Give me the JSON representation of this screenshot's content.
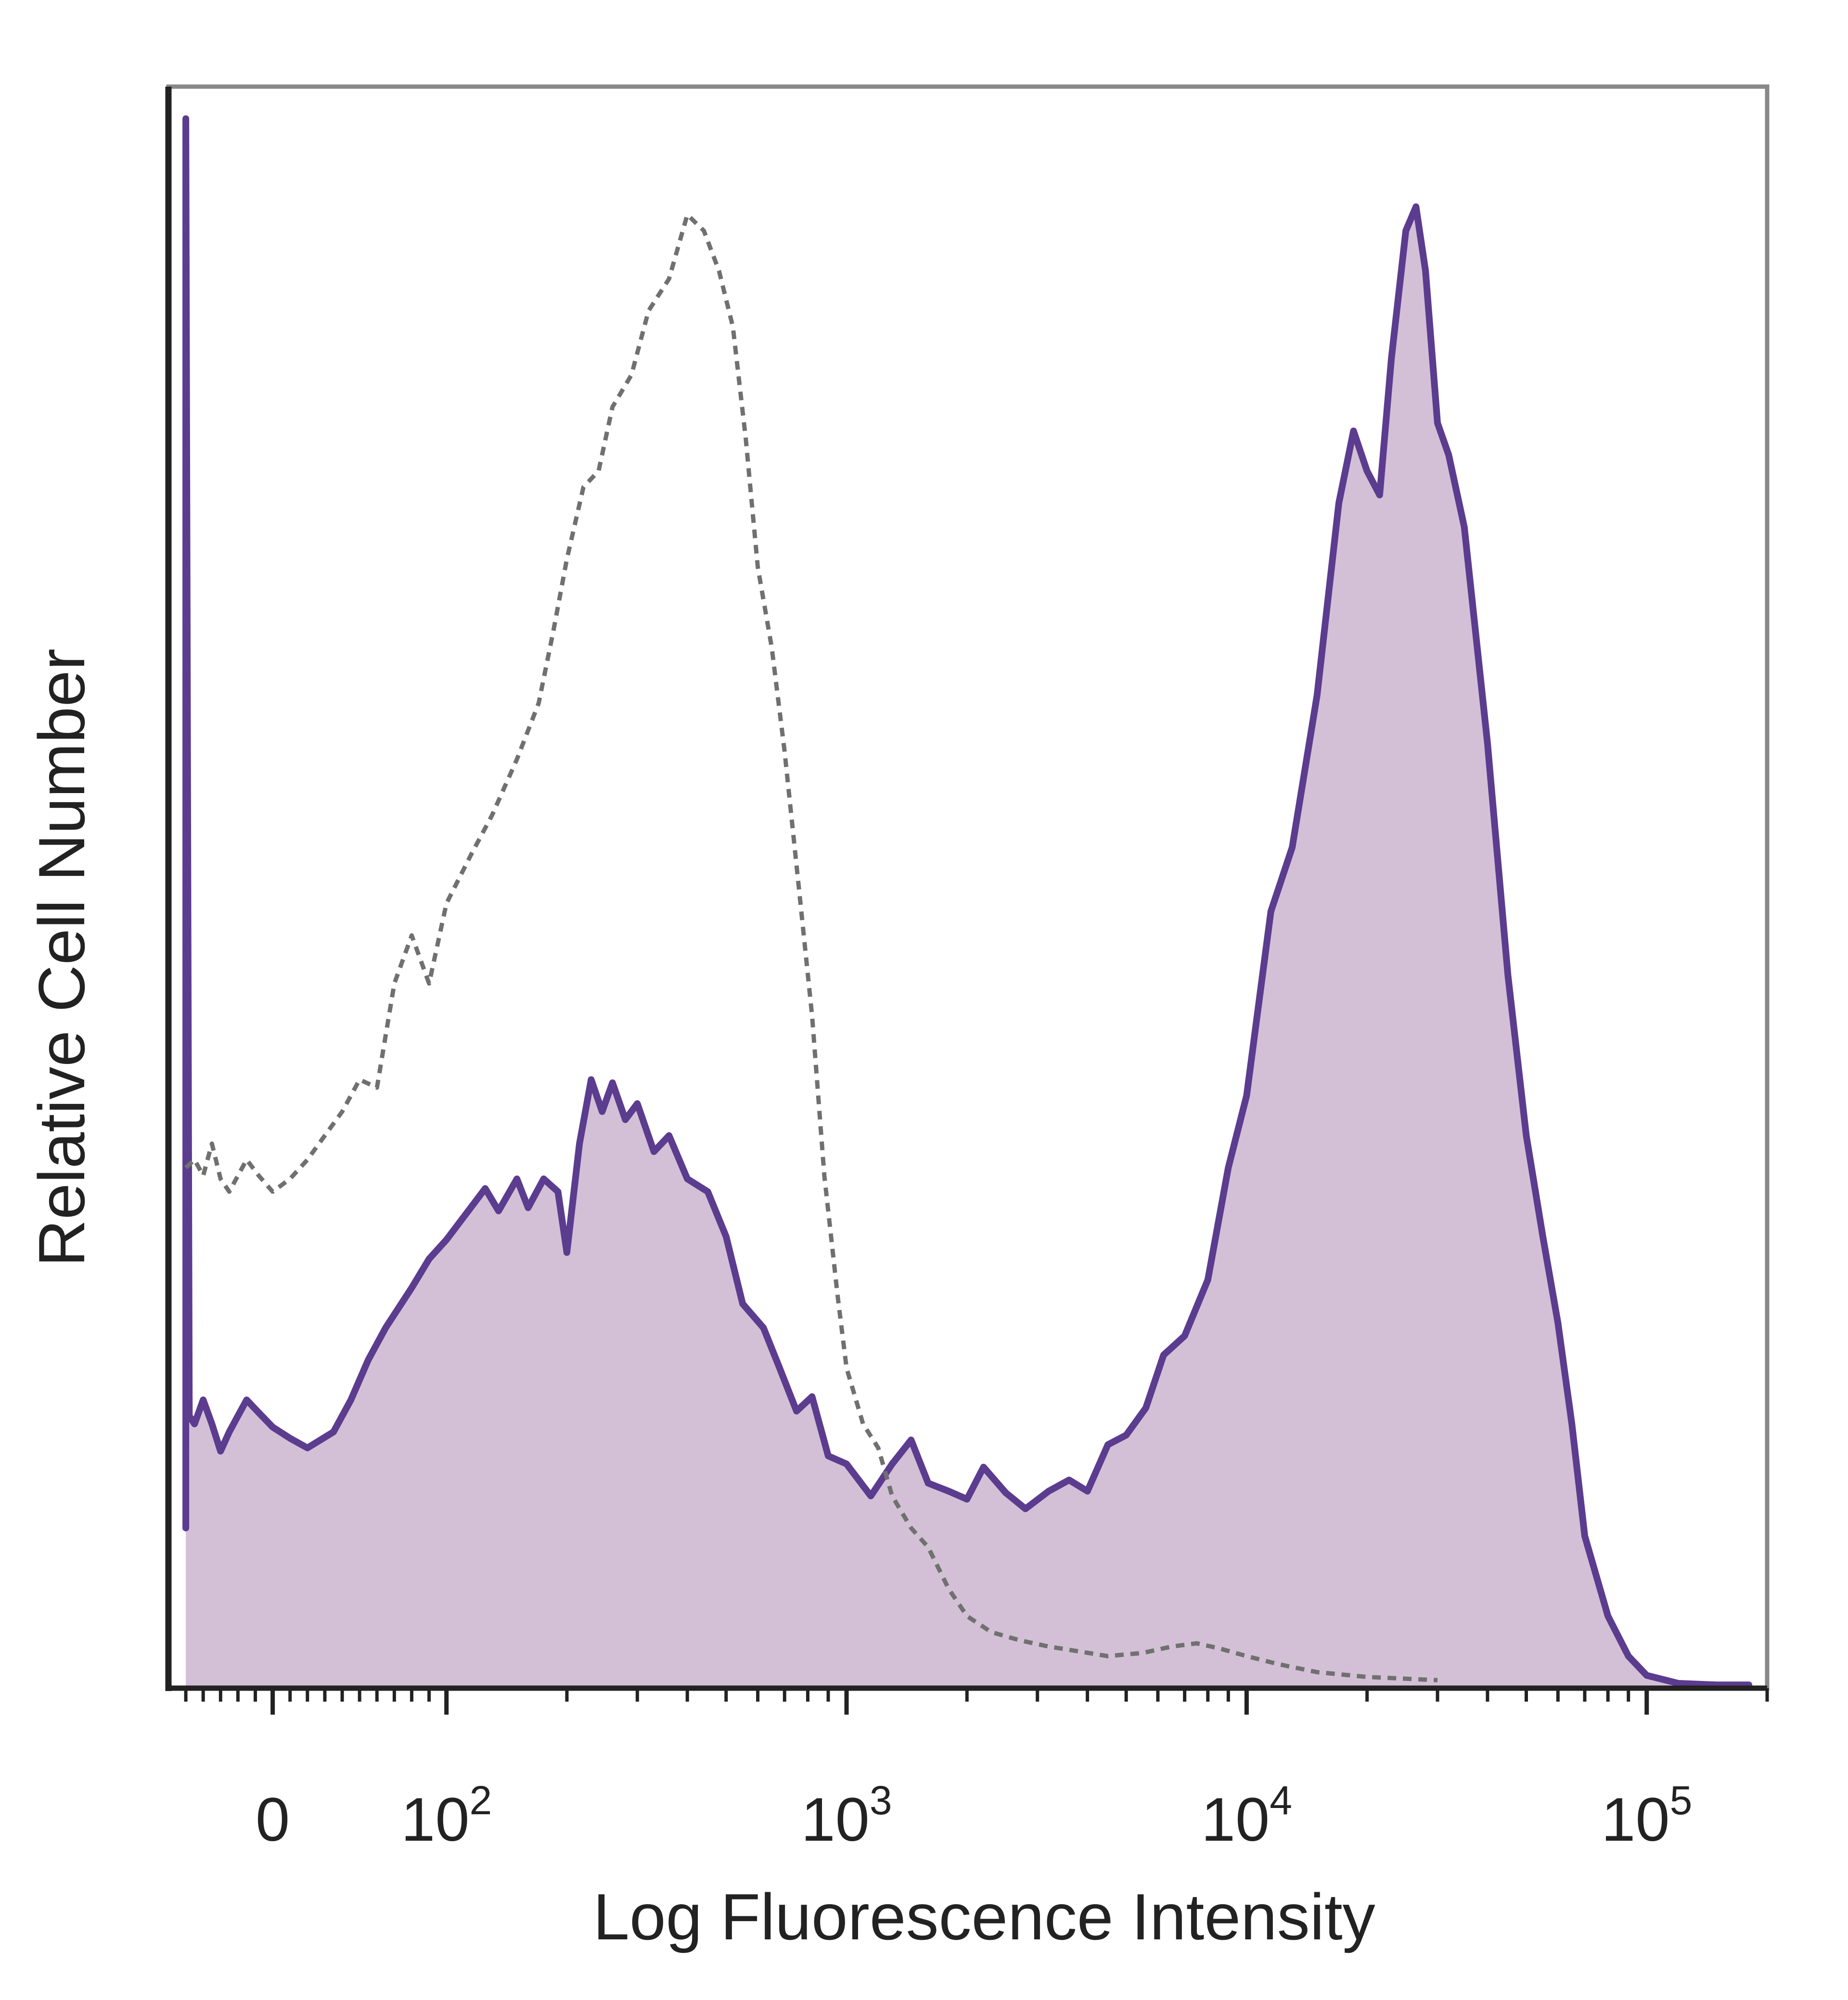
{
  "chart_data": {
    "type": "area",
    "title": "",
    "xlabel": "Log Fluorescence Intensity",
    "ylabel": "Relative Cell Number",
    "x_scale": "biexponential",
    "xlim": [
      -60,
      200000
    ],
    "ylim": [
      0,
      1
    ],
    "grid": false,
    "legend": "none",
    "x_ticks": [
      {
        "value": 0,
        "base": "0",
        "exp": ""
      },
      {
        "value": 100,
        "base": "10",
        "exp": "2"
      },
      {
        "value": 1000,
        "base": "10",
        "exp": "3"
      },
      {
        "value": 10000,
        "base": "10",
        "exp": "4"
      },
      {
        "value": 100000,
        "base": "10",
        "exp": "5"
      }
    ],
    "colors": {
      "filled_line": "#5b3c8f",
      "filled_area": "#d3c0d6",
      "control_line": "#707070",
      "frame": "#888888"
    },
    "series": [
      {
        "style": "filled-solid",
        "points": [
          [
            -50,
            0.1
          ],
          [
            -50,
            0.98
          ],
          [
            -48,
            0.17
          ],
          [
            -45,
            0.165
          ],
          [
            -40,
            0.18
          ],
          [
            -35,
            0.165
          ],
          [
            -30,
            0.148
          ],
          [
            -25,
            0.16
          ],
          [
            -20,
            0.17
          ],
          [
            -15,
            0.18
          ],
          [
            -8,
            0.172
          ],
          [
            0,
            0.163
          ],
          [
            10,
            0.156
          ],
          [
            20,
            0.15
          ],
          [
            35,
            0.16
          ],
          [
            45,
            0.18
          ],
          [
            55,
            0.205
          ],
          [
            65,
            0.225
          ],
          [
            80,
            0.25
          ],
          [
            90,
            0.268
          ],
          [
            100,
            0.28
          ],
          [
            115,
            0.3
          ],
          [
            125,
            0.312
          ],
          [
            135,
            0.298
          ],
          [
            150,
            0.318
          ],
          [
            160,
            0.3
          ],
          [
            175,
            0.318
          ],
          [
            190,
            0.31
          ],
          [
            200,
            0.272
          ],
          [
            215,
            0.34
          ],
          [
            230,
            0.38
          ],
          [
            245,
            0.36
          ],
          [
            260,
            0.378
          ],
          [
            280,
            0.355
          ],
          [
            300,
            0.365
          ],
          [
            330,
            0.335
          ],
          [
            360,
            0.345
          ],
          [
            400,
            0.318
          ],
          [
            450,
            0.31
          ],
          [
            500,
            0.282
          ],
          [
            550,
            0.24
          ],
          [
            620,
            0.225
          ],
          [
            680,
            0.2
          ],
          [
            750,
            0.173
          ],
          [
            820,
            0.182
          ],
          [
            900,
            0.145
          ],
          [
            1000,
            0.14
          ],
          [
            1150,
            0.12
          ],
          [
            1300,
            0.14
          ],
          [
            1450,
            0.155
          ],
          [
            1600,
            0.128
          ],
          [
            1800,
            0.123
          ],
          [
            2000,
            0.118
          ],
          [
            2200,
            0.138
          ],
          [
            2500,
            0.122
          ],
          [
            2800,
            0.112
          ],
          [
            3200,
            0.123
          ],
          [
            3600,
            0.13
          ],
          [
            4000,
            0.123
          ],
          [
            4500,
            0.152
          ],
          [
            5000,
            0.158
          ],
          [
            5600,
            0.175
          ],
          [
            6200,
            0.208
          ],
          [
            7000,
            0.22
          ],
          [
            8000,
            0.255
          ],
          [
            9000,
            0.325
          ],
          [
            10000,
            0.37
          ],
          [
            11500,
            0.485
          ],
          [
            13000,
            0.525
          ],
          [
            15000,
            0.62
          ],
          [
            17000,
            0.74
          ],
          [
            18500,
            0.785
          ],
          [
            20000,
            0.76
          ],
          [
            21500,
            0.745
          ],
          [
            23000,
            0.83
          ],
          [
            25000,
            0.91
          ],
          [
            26500,
            0.925
          ],
          [
            28000,
            0.885
          ],
          [
            30000,
            0.79
          ],
          [
            32000,
            0.77
          ],
          [
            35000,
            0.725
          ],
          [
            40000,
            0.59
          ],
          [
            45000,
            0.445
          ],
          [
            50000,
            0.345
          ],
          [
            55000,
            0.282
          ],
          [
            60000,
            0.228
          ],
          [
            65000,
            0.165
          ],
          [
            70000,
            0.095
          ],
          [
            80000,
            0.045
          ],
          [
            90000,
            0.02
          ],
          [
            100000,
            0.008
          ],
          [
            120000,
            0.003
          ],
          [
            150000,
            0.002
          ],
          [
            180000,
            0.002
          ]
        ]
      },
      {
        "style": "dashed-control",
        "points": [
          [
            -50,
            0.325
          ],
          [
            -45,
            0.33
          ],
          [
            -40,
            0.32
          ],
          [
            -35,
            0.34
          ],
          [
            -30,
            0.318
          ],
          [
            -25,
            0.31
          ],
          [
            -20,
            0.32
          ],
          [
            -15,
            0.33
          ],
          [
            -8,
            0.32
          ],
          [
            0,
            0.31
          ],
          [
            10,
            0.318
          ],
          [
            20,
            0.33
          ],
          [
            30,
            0.345
          ],
          [
            40,
            0.36
          ],
          [
            50,
            0.38
          ],
          [
            60,
            0.375
          ],
          [
            70,
            0.44
          ],
          [
            80,
            0.47
          ],
          [
            90,
            0.44
          ],
          [
            100,
            0.49
          ],
          [
            115,
            0.52
          ],
          [
            130,
            0.545
          ],
          [
            150,
            0.58
          ],
          [
            170,
            0.615
          ],
          [
            185,
            0.66
          ],
          [
            200,
            0.705
          ],
          [
            220,
            0.75
          ],
          [
            240,
            0.76
          ],
          [
            260,
            0.8
          ],
          [
            290,
            0.82
          ],
          [
            320,
            0.86
          ],
          [
            360,
            0.88
          ],
          [
            400,
            0.92
          ],
          [
            440,
            0.91
          ],
          [
            480,
            0.885
          ],
          [
            520,
            0.85
          ],
          [
            560,
            0.78
          ],
          [
            600,
            0.7
          ],
          [
            650,
            0.65
          ],
          [
            700,
            0.585
          ],
          [
            760,
            0.5
          ],
          [
            820,
            0.42
          ],
          [
            880,
            0.32
          ],
          [
            950,
            0.245
          ],
          [
            1000,
            0.2
          ],
          [
            1100,
            0.165
          ],
          [
            1200,
            0.15
          ],
          [
            1300,
            0.12
          ],
          [
            1450,
            0.1
          ],
          [
            1600,
            0.088
          ],
          [
            1800,
            0.062
          ],
          [
            2000,
            0.045
          ],
          [
            2300,
            0.035
          ],
          [
            2700,
            0.03
          ],
          [
            3200,
            0.026
          ],
          [
            3800,
            0.023
          ],
          [
            4500,
            0.02
          ],
          [
            5500,
            0.022
          ],
          [
            6500,
            0.026
          ],
          [
            7500,
            0.028
          ],
          [
            8500,
            0.025
          ],
          [
            10000,
            0.02
          ],
          [
            12000,
            0.015
          ],
          [
            15000,
            0.01
          ],
          [
            20000,
            0.007
          ],
          [
            30000,
            0.005
          ]
        ]
      }
    ]
  }
}
